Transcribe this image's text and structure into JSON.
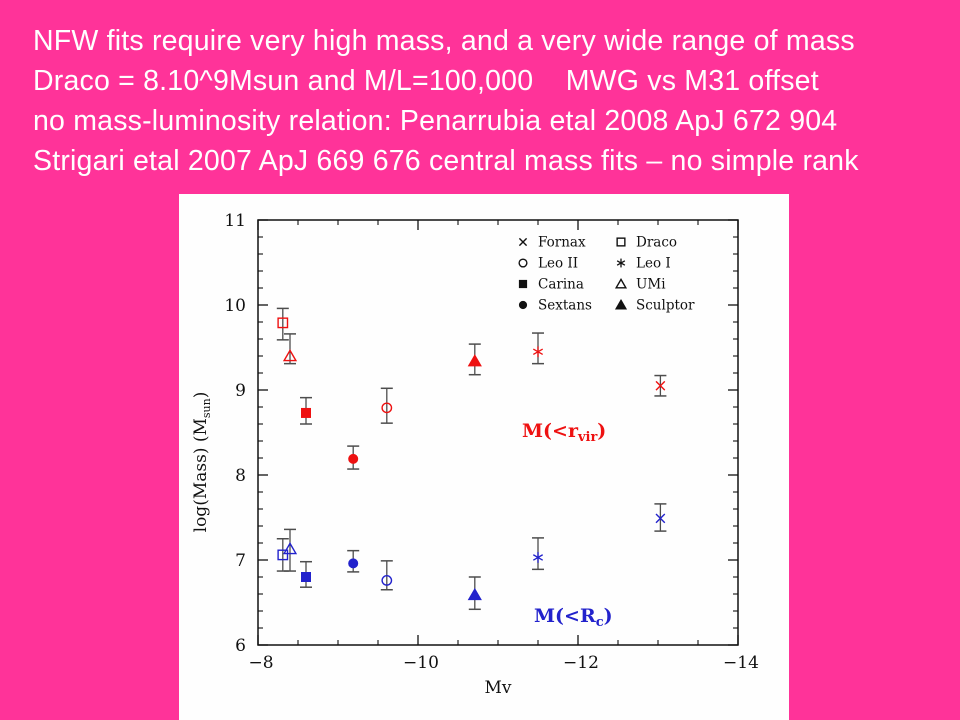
{
  "slide": {
    "background_color": "#ff3399",
    "text_color": "#ffffff",
    "lines": [
      "NFW fits require very high mass, and a very wide range of mass",
      "Draco = 8.10^9Msun and M/L=100,000    MWG vs M31 offset",
      "no mass-luminosity relation: Penarrubia etal 2008 ApJ 672 904",
      "Strigari etal 2007 ApJ 669 676 central mass fits – no simple rank"
    ]
  },
  "chart_data": {
    "type": "scatter",
    "title": "",
    "xlabel": "Mv",
    "ylabel": {
      "prefix": "log(Mass) (M",
      "sub": "sun",
      "suffix": ")"
    },
    "xlim": [
      -8,
      -14
    ],
    "ylim": [
      6,
      11
    ],
    "grid": false,
    "x_major_ticks": [
      -8,
      -10,
      -12,
      -14
    ],
    "x_tick_labels": [
      "−8",
      "−10",
      "−12",
      "−14"
    ],
    "x_minor_step": 0.5,
    "y_major_ticks": [
      6,
      7,
      8,
      9,
      10,
      11
    ],
    "y_tick_labels": [
      "6",
      "7",
      "8",
      "9",
      "10",
      "11"
    ],
    "y_minor_step": 0.2,
    "frame_color": "#111111",
    "error_bar_color": "#4d4d4d",
    "legend_color": "#111111",
    "legend_position": "top-right-inside",
    "legend_columns": [
      {
        "items": [
          {
            "label": "Fornax",
            "marker": "cross"
          },
          {
            "label": "Leo II",
            "marker": "open-circle"
          },
          {
            "label": "Carina",
            "marker": "filled-square"
          },
          {
            "label": "Sextans",
            "marker": "filled-circle"
          }
        ]
      },
      {
        "items": [
          {
            "label": "Draco",
            "marker": "open-square"
          },
          {
            "label": "Leo I",
            "marker": "star"
          },
          {
            "label": "UMi",
            "marker": "open-triangle"
          },
          {
            "label": "Sculptor",
            "marker": "filled-triangle"
          }
        ]
      }
    ],
    "annotations": [
      {
        "prefix": "M(<r",
        "sub": "vir",
        "suffix": ")",
        "color": "#ee1111",
        "x": -11.3,
        "y": 8.45
      },
      {
        "prefix": "M(<R",
        "sub": "c",
        "suffix": ")",
        "color": "#2222cc",
        "x": -11.45,
        "y": 6.27
      }
    ],
    "series": [
      {
        "name": "M(<r_vir)",
        "key": "rvir",
        "color": "#ee1111",
        "points": [
          {
            "galaxy": "Draco",
            "marker": "open-square",
            "x": -8.31,
            "y": 9.79,
            "err_up": 0.17,
            "err_down": 0.2
          },
          {
            "galaxy": "UMi",
            "marker": "open-triangle",
            "x": -8.4,
            "y": 9.4,
            "err_up": 0.26,
            "err_down": 0.09
          },
          {
            "galaxy": "Carina",
            "marker": "filled-square",
            "x": -8.6,
            "y": 8.73,
            "err_up": 0.18,
            "err_down": 0.13
          },
          {
            "galaxy": "Sextans",
            "marker": "filled-circle",
            "x": -9.19,
            "y": 8.19,
            "err_up": 0.15,
            "err_down": 0.12
          },
          {
            "galaxy": "Leo II",
            "marker": "open-circle",
            "x": -9.61,
            "y": 8.79,
            "err_up": 0.23,
            "err_down": 0.18
          },
          {
            "galaxy": "Sculptor",
            "marker": "filled-triangle",
            "x": -10.71,
            "y": 9.34,
            "err_up": 0.2,
            "err_down": 0.16
          },
          {
            "galaxy": "Leo I",
            "marker": "star",
            "x": -11.5,
            "y": 9.45,
            "err_up": 0.22,
            "err_down": 0.14
          },
          {
            "galaxy": "Fornax",
            "marker": "cross",
            "x": -13.03,
            "y": 9.05,
            "err_up": 0.12,
            "err_down": 0.12
          }
        ]
      },
      {
        "name": "M(<R_c)",
        "key": "rc",
        "color": "#2222cc",
        "points": [
          {
            "galaxy": "Draco",
            "marker": "open-square",
            "x": -8.31,
            "y": 7.06,
            "err_up": 0.19,
            "err_down": 0.19
          },
          {
            "galaxy": "UMi",
            "marker": "open-triangle",
            "x": -8.4,
            "y": 7.13,
            "err_up": 0.23,
            "err_down": 0.26
          },
          {
            "galaxy": "Carina",
            "marker": "filled-square",
            "x": -8.6,
            "y": 6.8,
            "err_up": 0.18,
            "err_down": 0.12
          },
          {
            "galaxy": "Sextans",
            "marker": "filled-circle",
            "x": -9.19,
            "y": 6.96,
            "err_up": 0.15,
            "err_down": 0.1
          },
          {
            "galaxy": "Leo II",
            "marker": "open-circle",
            "x": -9.61,
            "y": 6.76,
            "err_up": 0.23,
            "err_down": 0.11
          },
          {
            "galaxy": "Sculptor",
            "marker": "filled-triangle",
            "x": -10.71,
            "y": 6.59,
            "err_up": 0.21,
            "err_down": 0.17
          },
          {
            "galaxy": "Leo I",
            "marker": "star",
            "x": -11.5,
            "y": 7.03,
            "err_up": 0.23,
            "err_down": 0.14
          },
          {
            "galaxy": "Fornax",
            "marker": "cross",
            "x": -13.03,
            "y": 7.49,
            "err_up": 0.17,
            "err_down": 0.15
          }
        ]
      }
    ]
  }
}
